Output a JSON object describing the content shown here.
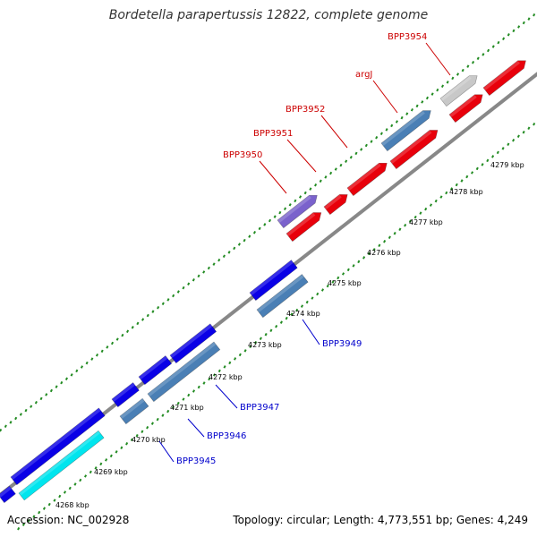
{
  "title": "Bordetella parapertussis 12822, complete genome",
  "footer": {
    "accession": "Accession: NC_002928",
    "summary": "Topology: circular; Length: 4,773,551 bp; Genes: 4,249"
  },
  "colors": {
    "backbone": "#888888",
    "tick": "#228b22",
    "forward_gene": "#e8000b",
    "reverse_gene": "#0a00e6",
    "steel_gene": "#4a7fb5",
    "cyan_gene": "#00e5ee",
    "grey_gene": "#c8c8c8",
    "purple_gene": "#7a62cc",
    "forward_label": "#cc0000",
    "reverse_label": "#0000cc"
  },
  "tick_labels": [
    "4268 kbp",
    "4269 kbp",
    "4270 kbp",
    "4271 kbp",
    "4272 kbp",
    "4273 kbp",
    "4274 kbp",
    "4275 kbp",
    "4276 kbp",
    "4277 kbp",
    "4278 kbp",
    "4279 kbp"
  ],
  "genes": [
    {
      "name": "BPP3945",
      "strand": "reverse",
      "color": "steel"
    },
    {
      "name": "BPP3946",
      "strand": "reverse",
      "color": "steel"
    },
    {
      "name": "BPP3947",
      "strand": "reverse",
      "color": "steel"
    },
    {
      "name": "BPP3949",
      "strand": "reverse",
      "color": "steel"
    },
    {
      "name": "BPP3950",
      "strand": "forward",
      "color": "purple"
    },
    {
      "name": "BPP3951",
      "strand": "forward",
      "color": "red"
    },
    {
      "name": "BPP3952",
      "strand": "forward",
      "color": "red"
    },
    {
      "name": "argJ",
      "strand": "forward",
      "color": "steel"
    },
    {
      "name": "BPP3954",
      "strand": "forward",
      "color": "grey"
    }
  ]
}
